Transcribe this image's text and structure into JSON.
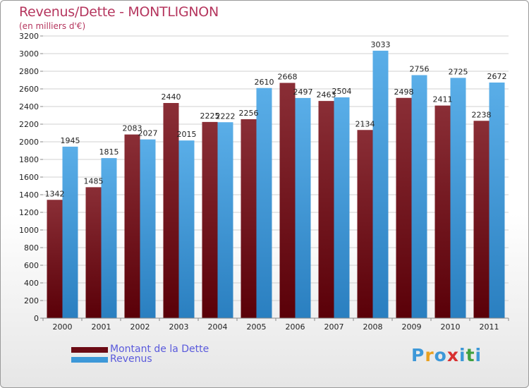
{
  "title": "Revenus/Dette - MONTLIGNON",
  "subtitle": "(en milliers d'€)",
  "colors": {
    "dette_top": "#8a2e36",
    "dette_bottom": "#5a0008",
    "revenus_top": "#5aaee8",
    "revenus_bottom": "#2a7fc0",
    "title": "#b5365e",
    "legend_text": "#5a5adc"
  },
  "legend": [
    {
      "label": "Montant de la Dette",
      "color": "#6b0a14"
    },
    {
      "label": "Revenus",
      "color": "#3d98d8"
    }
  ],
  "logo": {
    "letters": [
      "P",
      "r",
      "o",
      "x",
      "i",
      "t",
      "i"
    ],
    "colors": [
      "#3d98d8",
      "#e8a020",
      "#3d98d8",
      "#d83030",
      "#3d98d8",
      "#40a040",
      "#3d98d8"
    ]
  },
  "chart_data": {
    "type": "bar",
    "categories": [
      "2000",
      "2001",
      "2002",
      "2003",
      "2004",
      "2005",
      "2006",
      "2007",
      "2008",
      "2009",
      "2010",
      "2011"
    ],
    "series": [
      {
        "name": "Montant de la Dette",
        "values": [
          1342,
          1485,
          2083,
          2440,
          2225,
          2256,
          2668,
          2463,
          2134,
          2498,
          2411,
          2238
        ]
      },
      {
        "name": "Revenus",
        "values": [
          1945,
          1815,
          2027,
          2015,
          2222,
          2610,
          2497,
          2504,
          3033,
          2756,
          2725,
          2672
        ]
      }
    ],
    "ylim": [
      0,
      3200
    ],
    "yticks": [
      0,
      200,
      400,
      600,
      800,
      1000,
      1200,
      1400,
      1600,
      1800,
      2000,
      2200,
      2400,
      2600,
      2800,
      3000,
      3200
    ],
    "grid": true,
    "legend_position": "bottom-left"
  }
}
